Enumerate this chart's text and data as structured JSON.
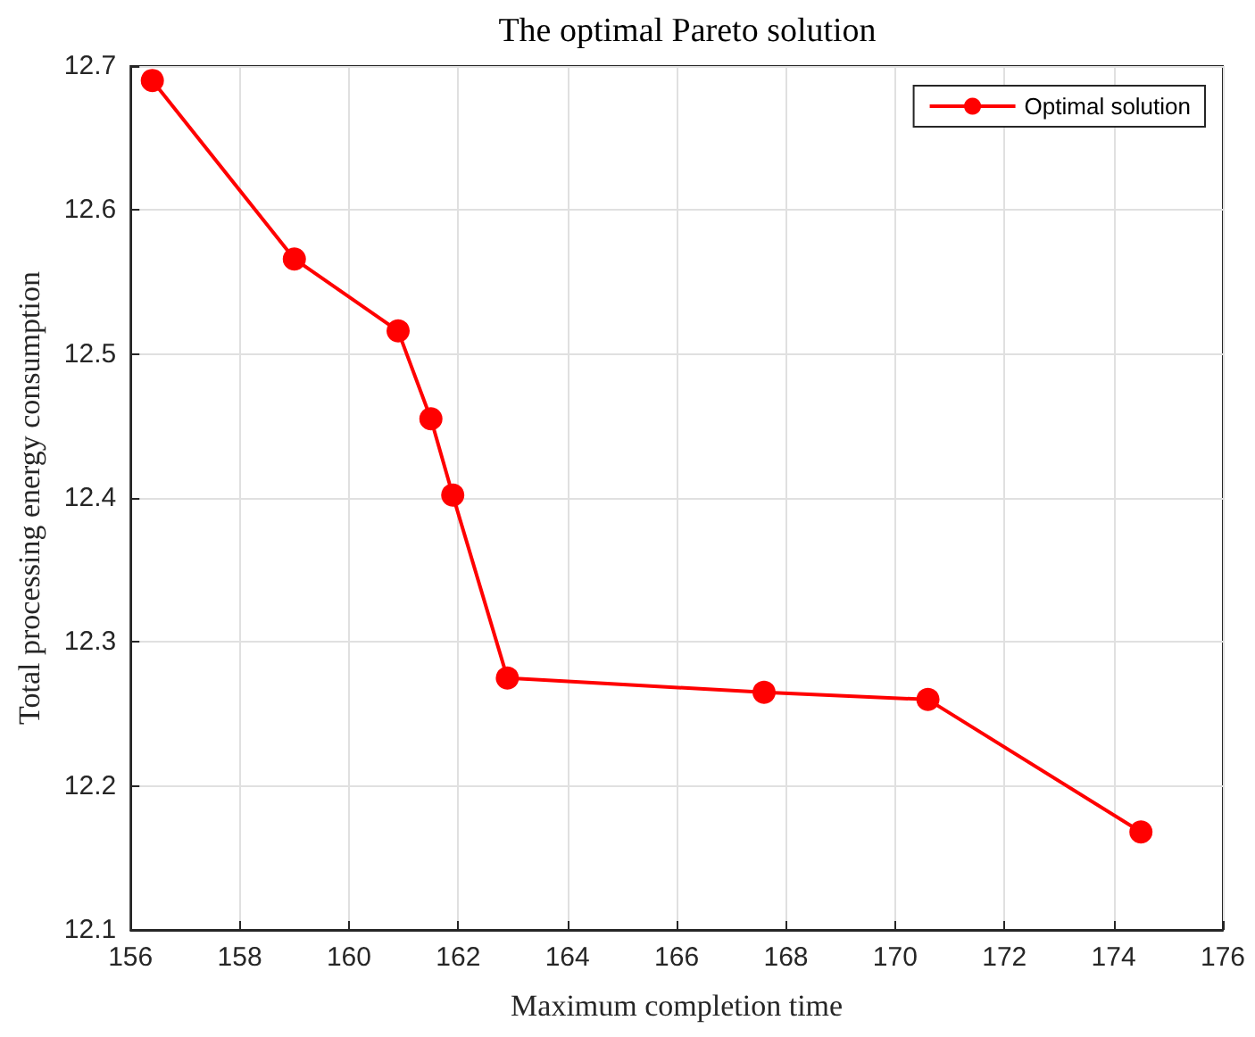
{
  "chart_data": {
    "type": "line",
    "title": "The optimal Pareto solution",
    "xlabel": "Maximum completion time",
    "ylabel": "Total processing energy consumption",
    "x": [
      156.4,
      159.0,
      160.9,
      161.5,
      161.9,
      162.9,
      167.6,
      170.6,
      174.5
    ],
    "series": [
      {
        "name": "Optimal solution",
        "color": "#ff0000",
        "values": [
          12.69,
          12.566,
          12.516,
          12.455,
          12.402,
          12.275,
          12.265,
          12.26,
          12.168
        ]
      }
    ],
    "xlim": [
      156,
      176
    ],
    "xticks": [
      156,
      158,
      160,
      162,
      164,
      166,
      168,
      170,
      172,
      174,
      176
    ],
    "ylim": [
      12.1,
      12.7
    ],
    "yticks": [
      12.1,
      12.2,
      12.3,
      12.4,
      12.5,
      12.6,
      12.7
    ],
    "grid": true,
    "legend": "top right",
    "marker": "circle",
    "line_style": "solid"
  }
}
